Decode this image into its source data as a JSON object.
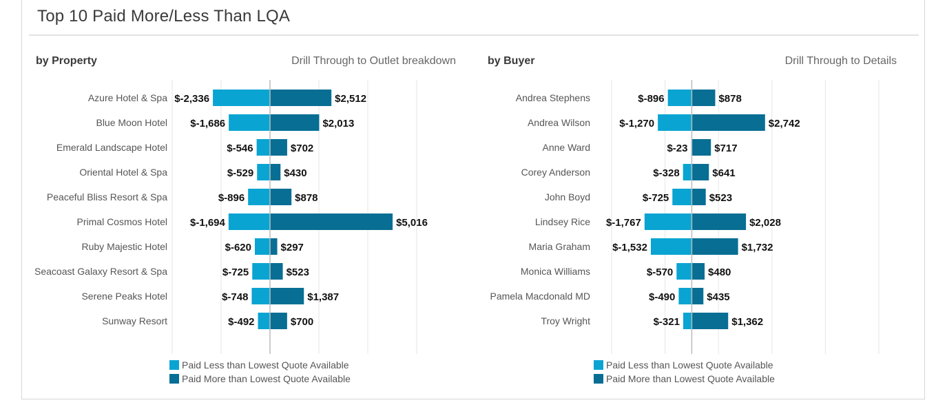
{
  "title": "Top 10 Paid More/Less Than LQA",
  "colors": {
    "less": "#0aa4d2",
    "more": "#086e93",
    "grid": "#e6e6e6",
    "zero": "#bbbbbb"
  },
  "panels": [
    {
      "heading": "by Property",
      "drill": "Drill Through to Outlet breakdown"
    },
    {
      "heading": "by Buyer",
      "drill": "Drill Through to Details"
    }
  ],
  "legend": {
    "less": "Paid Less than Lowest Quote Available",
    "more": "Paid More than Lowest Quote Available"
  },
  "chart_data": [
    {
      "type": "bar",
      "orientation": "horizontal-diverging",
      "title": "by Property",
      "categories": [
        "Azure Hotel & Spa",
        "Blue Moon Hotel",
        "Emerald Landscape Hotel",
        "Oriental Hotel & Spa",
        "Peaceful Bliss Resort & Spa",
        "Primal Cosmos Hotel",
        "Ruby Majestic Hotel",
        "Seacoast Galaxy Resort & Spa",
        "Serene Peaks Hotel",
        "Sunway Resort"
      ],
      "series": [
        {
          "name": "Paid Less than Lowest Quote Available",
          "values": [
            -2336,
            -1686,
            -546,
            -529,
            -896,
            -1694,
            -620,
            -725,
            -748,
            -492
          ],
          "labels": [
            "$-2,336",
            "$-1,686",
            "$-546",
            "$-529",
            "$-896",
            "$-1,694",
            "$-620",
            "$-725",
            "$-748",
            "$-492"
          ]
        },
        {
          "name": "Paid More than Lowest Quote Available",
          "values": [
            2512,
            2013,
            702,
            430,
            878,
            5016,
            297,
            523,
            1387,
            700
          ],
          "labels": [
            "$2,512",
            "$2,013",
            "$702",
            "$430",
            "$878",
            "$5,016",
            "$297",
            "$523",
            "$1,387",
            "$700"
          ]
        }
      ],
      "xlim": [
        -4000,
        6000
      ],
      "grid": true,
      "legend_position": "bottom"
    },
    {
      "type": "bar",
      "orientation": "horizontal-diverging",
      "title": "by Buyer",
      "categories": [
        "Andrea Stephens",
        "Andrea Wilson",
        "Anne Ward",
        "Corey Anderson",
        "John Boyd",
        "Lindsey Rice",
        "Maria Graham",
        "Monica Williams",
        "Pamela Macdonald MD",
        "Troy Wright"
      ],
      "series": [
        {
          "name": "Paid Less than Lowest Quote Available",
          "values": [
            -896,
            -1270,
            -23,
            -328,
            -725,
            -1767,
            -1532,
            -570,
            -490,
            -321
          ],
          "labels": [
            "$-896",
            "$-1,270",
            "$-23",
            "$-328",
            "$-725",
            "$-1,767",
            "$-1,532",
            "$-570",
            "$-490",
            "$-321"
          ]
        },
        {
          "name": "Paid More than Lowest Quote Available",
          "values": [
            878,
            2742,
            717,
            641,
            523,
            2028,
            1732,
            480,
            435,
            1362
          ],
          "labels": [
            "$878",
            "$2,742",
            "$717",
            "$641",
            "$523",
            "$2,028",
            "$1,732",
            "$480",
            "$435",
            "$1,362"
          ]
        }
      ],
      "xlim": [
        -3000,
        7000
      ],
      "grid": true,
      "legend_position": "bottom"
    }
  ]
}
